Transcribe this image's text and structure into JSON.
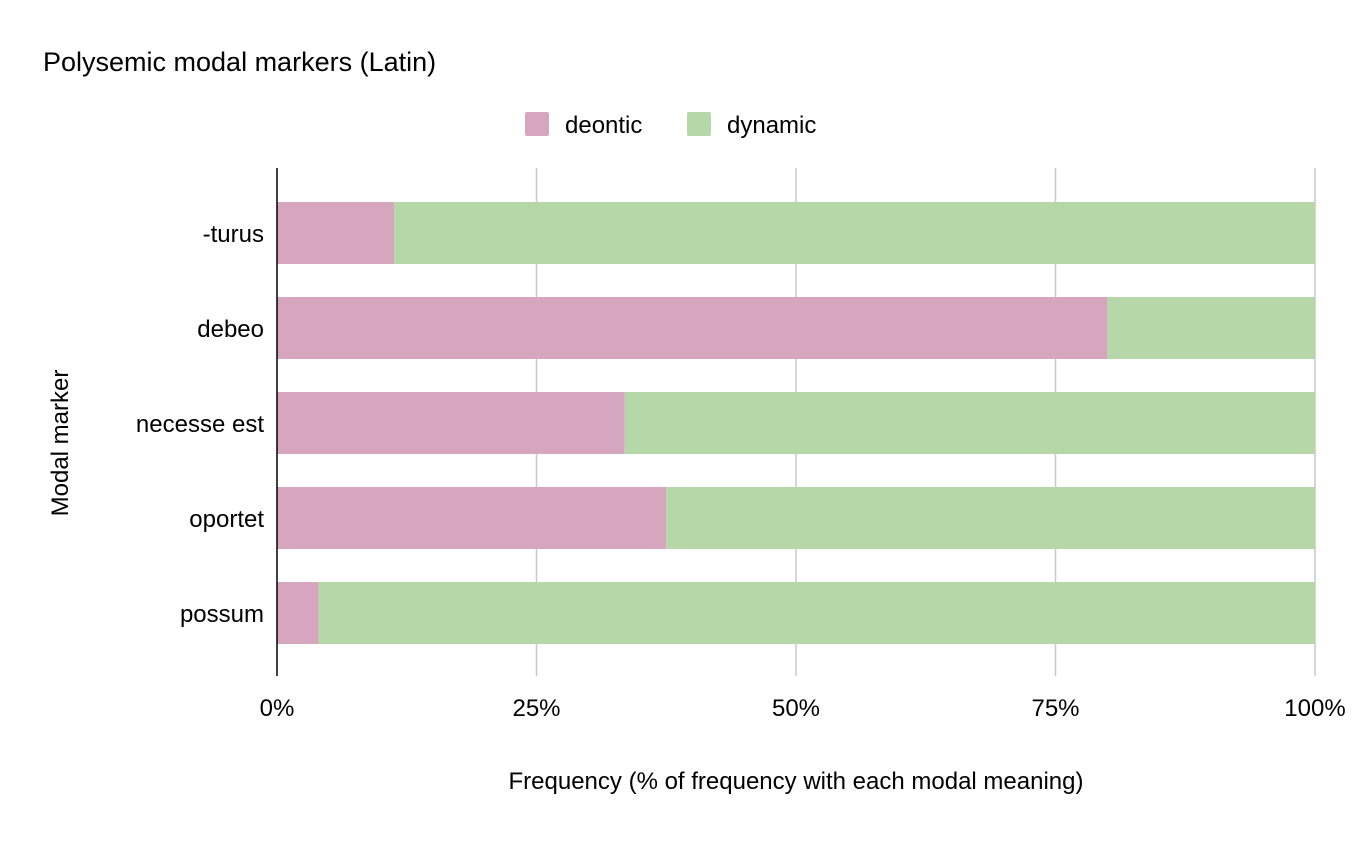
{
  "chart_data": {
    "type": "bar",
    "orientation": "horizontal",
    "stacked": "percent",
    "title": "Polysemic modal markers (Latin)",
    "xlabel": "Frequency (% of frequency with each modal meaning)",
    "ylabel": "Modal marker",
    "categories": [
      "-turus",
      "debeo",
      "necesse est",
      "oportet",
      "possum"
    ],
    "series": [
      {
        "name": "deontic",
        "color": "#d5a6bd",
        "values": [
          11.3,
          80.0,
          33.5,
          37.5,
          4.0
        ]
      },
      {
        "name": "dynamic",
        "color": "#b6d7a8",
        "values": [
          88.7,
          20.0,
          66.5,
          62.5,
          96.0
        ]
      }
    ],
    "xlim": [
      0,
      100
    ],
    "xticks": [
      "0%",
      "25%",
      "50%",
      "75%",
      "100%"
    ],
    "grid": true,
    "legend_position": "top-center"
  }
}
